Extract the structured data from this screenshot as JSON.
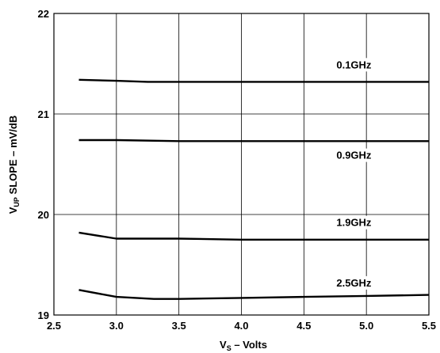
{
  "chart_data": {
    "type": "line",
    "title": "",
    "xlabel": {
      "main": "V",
      "sub": "S",
      "rest": " – Volts"
    },
    "ylabel": {
      "main": "V",
      "sub": "UP",
      "rest": " SLOPE – mV/dB"
    },
    "xlim": [
      2.5,
      5.5
    ],
    "ylim": [
      19,
      22
    ],
    "xticks": [
      2.5,
      3.0,
      3.5,
      4.0,
      4.5,
      5.0,
      5.5
    ],
    "xtick_labels": [
      "2.5",
      "3.0",
      "3.5",
      "4.0",
      "4.5",
      "5.0",
      "5.5"
    ],
    "yticks": [
      19,
      20,
      21,
      22
    ],
    "ytick_labels": [
      "19",
      "20",
      "21",
      "22"
    ],
    "grid": true,
    "legend": "none",
    "series": [
      {
        "name": "0.1GHz",
        "label_at": [
          4.9,
          21.47
        ],
        "x": [
          2.7,
          3.0,
          3.25,
          3.5,
          4.0,
          4.5,
          5.0,
          5.5
        ],
        "y": [
          21.34,
          21.33,
          21.32,
          21.32,
          21.32,
          21.32,
          21.32,
          21.32
        ]
      },
      {
        "name": "0.9GHz",
        "label_at": [
          4.9,
          20.57
        ],
        "x": [
          2.7,
          3.0,
          3.5,
          4.0,
          4.5,
          5.0,
          5.5
        ],
        "y": [
          20.74,
          20.74,
          20.73,
          20.73,
          20.73,
          20.73,
          20.73
        ]
      },
      {
        "name": "1.9GHz",
        "label_at": [
          4.9,
          19.9
        ],
        "x": [
          2.7,
          3.0,
          3.5,
          4.0,
          4.5,
          5.0,
          5.5
        ],
        "y": [
          19.82,
          19.76,
          19.76,
          19.75,
          19.75,
          19.75,
          19.75
        ]
      },
      {
        "name": "2.5GHz",
        "label_at": [
          4.9,
          19.3
        ],
        "x": [
          2.7,
          3.0,
          3.3,
          3.5,
          4.0,
          4.5,
          5.0,
          5.5
        ],
        "y": [
          19.25,
          19.18,
          19.16,
          19.16,
          19.17,
          19.18,
          19.19,
          19.2
        ]
      }
    ]
  }
}
